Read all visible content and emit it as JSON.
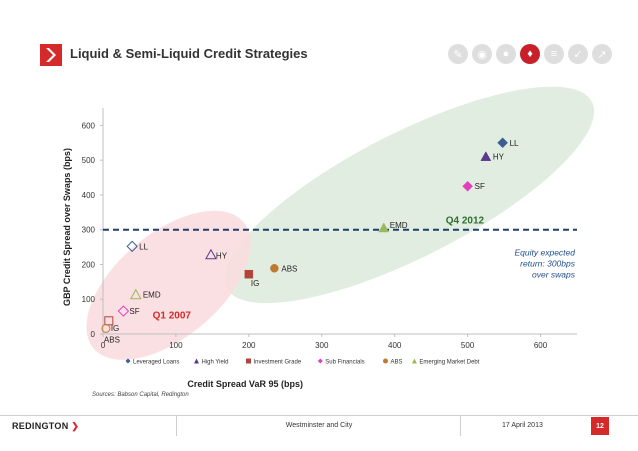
{
  "header": {
    "title": "Liquid & Semi-Liquid Credit Strategies",
    "nav_icons": [
      "pencil-icon",
      "target-icon",
      "coins-icon",
      "drops-icon",
      "bars-icon",
      "check-icon",
      "chart-icon"
    ],
    "active_icon_index": 3
  },
  "chart_data": {
    "type": "scatter",
    "xlabel": "Credit Spread VaR 95 (bps)",
    "ylabel": "GBP Credit Spread over Swaps (bps)",
    "xlim": [
      0,
      650
    ],
    "ylim": [
      0,
      650
    ],
    "xticks": [
      "0",
      "100",
      "200",
      "300",
      "400",
      "500",
      "600"
    ],
    "yticks": [
      "0",
      "100",
      "200",
      "300",
      "400",
      "500",
      "600"
    ],
    "legend_position": "bottom",
    "colors": {
      "loans": "#3b5f8e",
      "hy": "#5b3a8e",
      "ig": "#b0443c",
      "subfin": "#e040c0",
      "abs": "#c07a30",
      "emd": "#9ab860",
      "threshold": "#1f3e6b",
      "q4_text": "#2e6e2e",
      "q1_text": "#d62a2a",
      "annotation": "#1f4e8c",
      "q4_ellipse": "#dceadb",
      "q1_ellipse": "#f9dde0"
    },
    "series": [
      {
        "name": "Leveraged Loans",
        "key": "loans",
        "marker": "diamond",
        "points": [
          {
            "x": 40,
            "y": 252,
            "label": "LL",
            "hollow": true
          },
          {
            "x": 548,
            "y": 550,
            "label": "LL",
            "hollow": false
          }
        ]
      },
      {
        "name": "High Yield",
        "key": "hy",
        "marker": "triangle",
        "points": [
          {
            "x": 148,
            "y": 228,
            "label": "HY",
            "hollow": true
          },
          {
            "x": 525,
            "y": 510,
            "label": "HY",
            "hollow": false
          }
        ]
      },
      {
        "name": "Investment Grade",
        "key": "ig",
        "marker": "square",
        "points": [
          {
            "x": 8,
            "y": 38,
            "label": "IG",
            "hollow": true
          },
          {
            "x": 200,
            "y": 172,
            "label": "IG",
            "hollow": false
          }
        ]
      },
      {
        "name": "Sub Financials",
        "key": "subfin",
        "marker": "diamond",
        "points": [
          {
            "x": 28,
            "y": 66,
            "label": "SF",
            "hollow": true
          },
          {
            "x": 500,
            "y": 425,
            "label": "SF",
            "hollow": false
          }
        ]
      },
      {
        "name": "ABS",
        "key": "abs",
        "marker": "circle",
        "points": [
          {
            "x": 4,
            "y": 16,
            "label": "ABS",
            "hollow": true
          },
          {
            "x": 235,
            "y": 189,
            "label": "ABS",
            "hollow": false
          }
        ]
      },
      {
        "name": "Emerging Market Debt",
        "key": "emd",
        "marker": "triangle",
        "points": [
          {
            "x": 45,
            "y": 113,
            "label": "EMD",
            "hollow": true
          },
          {
            "x": 385,
            "y": 305,
            "label": "EMD",
            "hollow": false
          }
        ]
      }
    ],
    "threshold": {
      "y": 300,
      "text": "Equity expected\nreturn: 300bps\nover swaps"
    },
    "annotations": {
      "q4": "Q4 2012",
      "q1": "Q1 2007"
    }
  },
  "source": "Sources: Babson Capital, Redington",
  "footer": {
    "brand": "REDINGTON",
    "center": "Westminster and City",
    "date": "17 April 2013",
    "page": "12"
  }
}
